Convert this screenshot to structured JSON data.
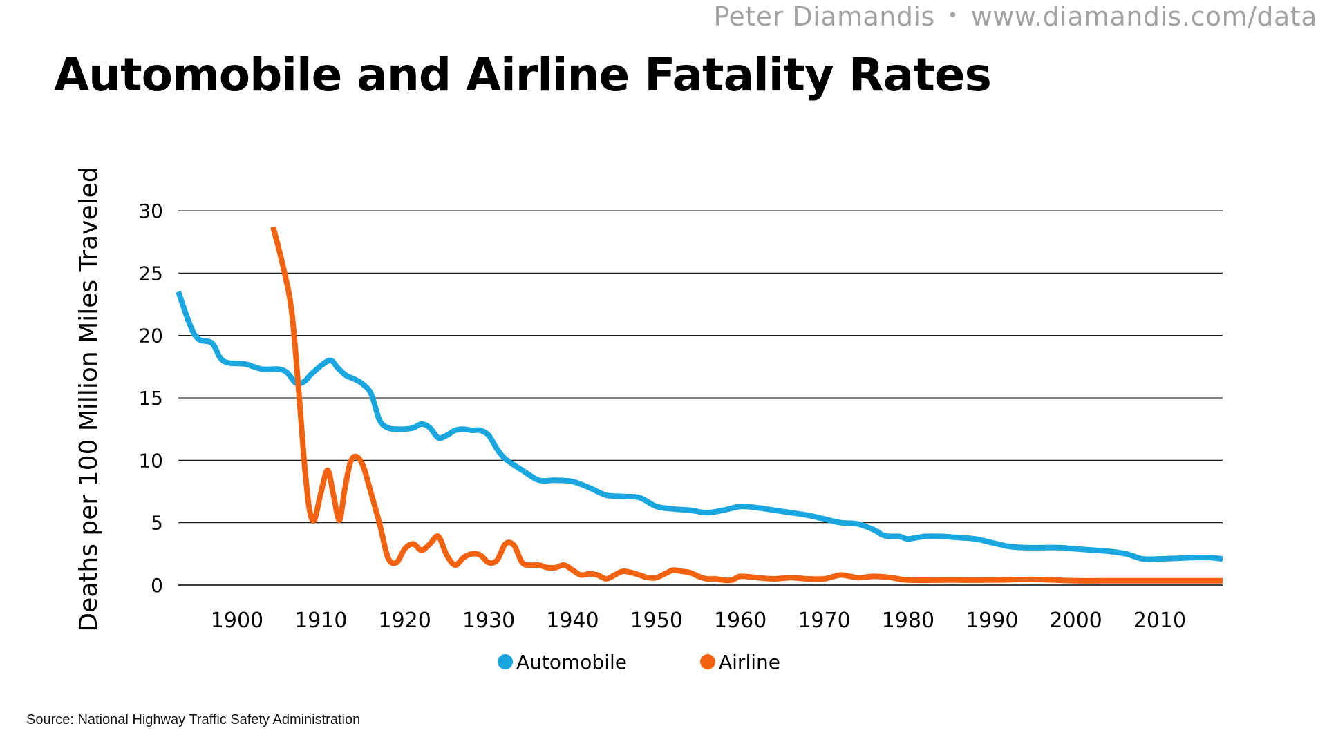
{
  "header": {
    "author": "Peter Diamandis",
    "separator": "•",
    "url": "www.diamandis.com/data"
  },
  "title": "Automobile and Airline Fatality Rates",
  "source": "Source: National Highway Traffic Safety Administration",
  "colors": {
    "automobile": "#1aa7e0",
    "airline": "#f4620f",
    "grid": "#000000"
  },
  "chart_data": {
    "type": "line",
    "title": "Automobile and Airline Fatality Rates",
    "xlabel": "",
    "ylabel": "Deaths per 100 Million Miles Traveled",
    "xlim": [
      1893,
      2017.5
    ],
    "ylim": [
      0,
      30
    ],
    "x_ticks": [
      1900,
      1910,
      1920,
      1930,
      1940,
      1950,
      1960,
      1970,
      1980,
      1990,
      2000,
      2010
    ],
    "y_ticks": [
      0,
      5,
      10,
      15,
      20,
      25,
      30
    ],
    "grid": true,
    "legend_position": "bottom-center",
    "series": [
      {
        "name": "Automobile",
        "color": "#1aa7e0",
        "x": [
          1893,
          1895,
          1897,
          1898,
          1899,
          1901,
          1903,
          1905,
          1906,
          1907,
          1908,
          1909,
          1911,
          1912,
          1913,
          1914,
          1915,
          1916,
          1917,
          1918,
          1919,
          1920,
          1921,
          1922,
          1923,
          1924,
          1925,
          1926,
          1927,
          1928,
          1929,
          1930,
          1931,
          1932,
          1934,
          1936,
          1938,
          1940,
          1942,
          1944,
          1946,
          1948,
          1950,
          1952,
          1954,
          1956,
          1958,
          1960,
          1962,
          1964,
          1966,
          1968,
          1970,
          1972,
          1974,
          1976,
          1977,
          1978,
          1979,
          1980,
          1982,
          1984,
          1986,
          1988,
          1990,
          1992,
          1994,
          1996,
          1998,
          2000,
          2002,
          2004,
          2006,
          2008,
          2010,
          2012,
          2014,
          2016,
          2017.5
        ],
        "values": [
          23.5,
          20,
          19.4,
          18.2,
          17.8,
          17.7,
          17.3,
          17.3,
          17.0,
          16.2,
          16.3,
          17.0,
          18.0,
          17.4,
          16.8,
          16.5,
          16.1,
          15.3,
          13.2,
          12.6,
          12.5,
          12.5,
          12.6,
          12.9,
          12.6,
          11.8,
          12.0,
          12.4,
          12.5,
          12.4,
          12.4,
          12.0,
          10.9,
          10.1,
          9.2,
          8.4,
          8.4,
          8.3,
          7.8,
          7.2,
          7.1,
          7.0,
          6.3,
          6.1,
          6.0,
          5.8,
          6.0,
          6.3,
          6.2,
          6.0,
          5.8,
          5.6,
          5.3,
          5.0,
          4.9,
          4.4,
          4.0,
          3.9,
          3.9,
          3.7,
          3.9,
          3.9,
          3.8,
          3.7,
          3.4,
          3.1,
          3.0,
          3.0,
          3.0,
          2.9,
          2.8,
          2.7,
          2.5,
          2.1,
          2.1,
          2.15,
          2.2,
          2.2,
          2.1
        ]
      },
      {
        "name": "Airline",
        "color": "#f4620f",
        "x": [
          1904.3,
          1905.5,
          1906.5,
          1907.3,
          1908,
          1908.6,
          1909.2,
          1910,
          1910.8,
          1911.5,
          1912.2,
          1912.8,
          1913.5,
          1914.2,
          1915,
          1915.8,
          1917,
          1918,
          1919,
          1920,
          1921,
          1922,
          1923,
          1924,
          1925,
          1926,
          1927,
          1928,
          1929,
          1930,
          1931,
          1932,
          1933,
          1934,
          1935,
          1936,
          1937,
          1938,
          1939,
          1940,
          1941,
          1942,
          1943,
          1944,
          1945,
          1946,
          1947,
          1948,
          1949,
          1950,
          1951,
          1952,
          1953,
          1954,
          1955,
          1956,
          1957,
          1958,
          1959,
          1960,
          1962,
          1964,
          1966,
          1968,
          1970,
          1972,
          1974,
          1976,
          1978,
          1980,
          1985,
          1990,
          1995,
          2000,
          2005,
          2010,
          2017.5
        ],
        "values": [
          28.7,
          25.5,
          22.0,
          16.0,
          10.0,
          6.2,
          5.2,
          7.4,
          9.2,
          7.2,
          5.2,
          7.5,
          9.8,
          10.3,
          9.6,
          7.8,
          4.9,
          2.2,
          1.8,
          2.9,
          3.3,
          2.8,
          3.3,
          3.9,
          2.4,
          1.6,
          2.2,
          2.5,
          2.4,
          1.8,
          2.0,
          3.3,
          3.2,
          1.8,
          1.6,
          1.6,
          1.4,
          1.4,
          1.6,
          1.2,
          0.8,
          0.9,
          0.8,
          0.5,
          0.8,
          1.1,
          1.0,
          0.8,
          0.6,
          0.6,
          0.9,
          1.2,
          1.1,
          1.0,
          0.7,
          0.5,
          0.5,
          0.4,
          0.4,
          0.7,
          0.6,
          0.5,
          0.6,
          0.5,
          0.5,
          0.8,
          0.6,
          0.7,
          0.6,
          0.4,
          0.4,
          0.4,
          0.45,
          0.35,
          0.35,
          0.35,
          0.35
        ]
      }
    ]
  }
}
